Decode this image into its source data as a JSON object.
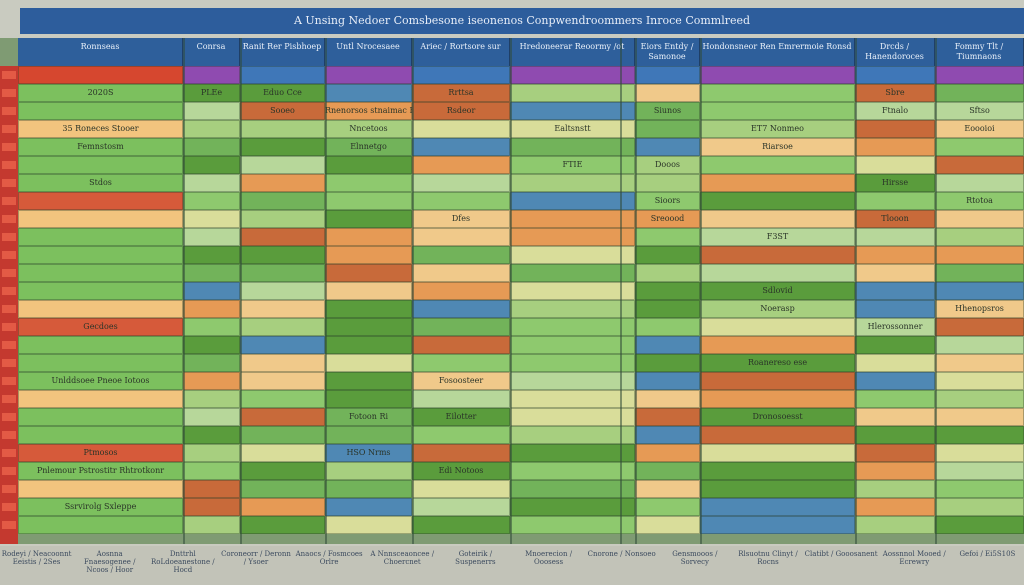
{
  "title": "A Unsing Nedoer Comsbesone iseonenos Conpwendroommers Inroce Commlreed",
  "headers": [
    "Ronnseas",
    "Conrsa",
    "Ranit Rer Pisbhoep",
    "Untl Nrocesaee",
    "Ariec / Rortsore sur",
    "Hredoneerar Reoormy /ot",
    "Eiors Entdy / Samonoe",
    "Hondonsneor Ren Emrermoie Ronsd",
    "Drcds / Hanendoroces",
    "Fommy Tlt / Tiumnaons"
  ],
  "cells": [
    {
      "text": "2020S"
    },
    {
      "text": "35 Roneces Stooer"
    },
    {
      "text": "Femnstosm"
    },
    {
      "text": "Stdos"
    },
    {
      "text": "PLEe"
    },
    {
      "text": "Eduo Cce"
    },
    {
      "text": "Rnenorsos stnaimac Rresoenoes"
    },
    {
      "text": "Gecdoes"
    },
    {
      "text": "Unlddsoee Pneoe Iotoos"
    },
    {
      "text": "Ptmosos"
    },
    {
      "text": "Pnlemour Pstrostitr Rhtrotkonr"
    },
    {
      "text": "Ssrvirolg Sxleppe"
    },
    {
      "text": "Ealtsnstt"
    },
    {
      "text": "FTIE"
    },
    {
      "text": "Nncetoos"
    },
    {
      "text": "Elnnetgo"
    },
    {
      "text": "Rrttsa"
    },
    {
      "text": "Rsdeor"
    },
    {
      "text": "Sooeo"
    },
    {
      "text": "Dfes"
    },
    {
      "text": "Sbre"
    },
    {
      "text": "Ftnalo"
    },
    {
      "text": "Sioors"
    },
    {
      "text": "Sreoood"
    },
    {
      "text": "Sdlovid"
    },
    {
      "text": "Siunos"
    },
    {
      "text": "ET7 Nonmeo"
    },
    {
      "text": "Riarsoe"
    },
    {
      "text": "Dooos"
    },
    {
      "text": "Hirsse"
    },
    {
      "text": "Sftso"
    },
    {
      "text": "Eoooioi"
    },
    {
      "text": "Rtotoa"
    },
    {
      "text": "Roanereso ese"
    },
    {
      "text": "F3ST"
    },
    {
      "text": "Tlooon"
    },
    {
      "text": "Hlerossonner"
    },
    {
      "text": "Fotoon Ri"
    },
    {
      "text": "HSO Nrms"
    },
    {
      "text": "Hhenopsros"
    },
    {
      "text": "Dronosoesst"
    },
    {
      "text": "Fosoosteer"
    },
    {
      "text": "Noerasp"
    },
    {
      "text": "Eilotter"
    },
    {
      "text": "Edi Notoos"
    }
  ],
  "footer": [
    "Rodeyi / Neacoonnt Eeistis / 2Ses",
    "Aosnna Fnaesogenee / Ncoos / Hoor",
    "Dnttrhl RoLdoeanestone / Hocd",
    "Coroneorr / Deronn / Ysoer",
    "Anaocs / Fosmcoes Orlre",
    "A Nnnsceaoncee / Choercnet",
    "Goteirik / Suspenerrs",
    "Mnoerecion / Ooosess",
    "Cnorone / Nonsoeo",
    "Gensmooos / Sorvecy",
    "Rlsuotnu Clinyt / Rocns",
    "Clatibt / Gooosanent",
    "Aossnnol Mooed / Ecrewry",
    "Gefoi / Ei5S10S"
  ]
}
